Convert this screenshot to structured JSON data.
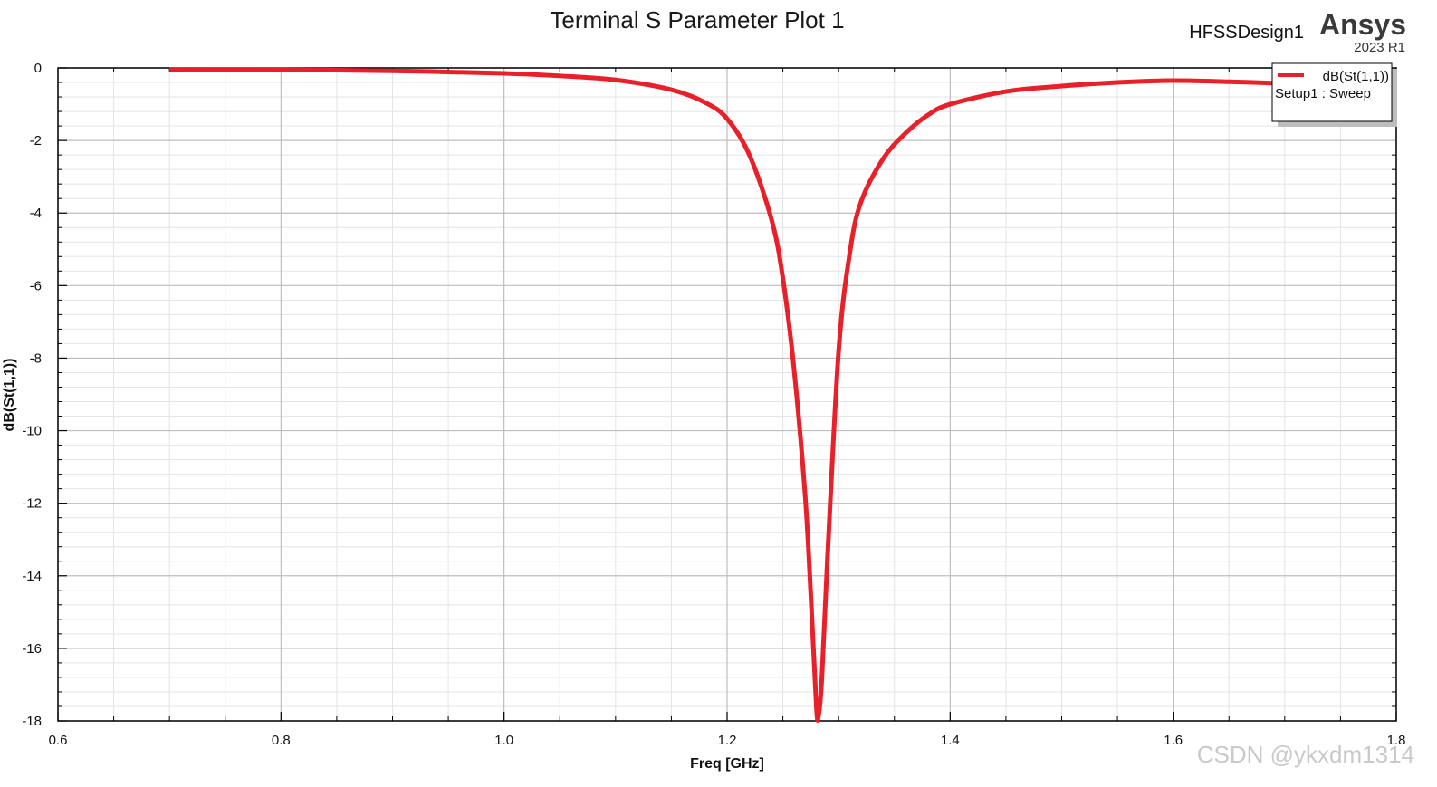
{
  "header": {
    "design_name": "HFSSDesign1",
    "brand": "Ansys",
    "version": "2023 R1"
  },
  "watermark": "CSDN @ykxdm1314",
  "colors": {
    "trace": "#e8202a",
    "grid_major": "#bdbdbd",
    "grid_minor": "#e4e4e4",
    "axis": "#000000"
  },
  "chart_data": {
    "type": "line",
    "title": "Terminal S Parameter Plot 1",
    "xlabel": "Freq [GHz]",
    "ylabel": "dB(St(1,1))",
    "xlim": [
      0.6,
      1.8
    ],
    "ylim": [
      -18,
      0
    ],
    "x_ticks": [
      0.6,
      0.8,
      1.0,
      1.2,
      1.4,
      1.6,
      1.8
    ],
    "x_tick_labels": [
      "0.6",
      "0.8",
      "1.0",
      "1.2",
      "1.4",
      "1.6",
      "1.8"
    ],
    "y_ticks": [
      0,
      -2,
      -4,
      -6,
      -8,
      -10,
      -12,
      -14,
      -16,
      -18
    ],
    "y_tick_labels": [
      "0",
      "-2",
      "-4",
      "-6",
      "-8",
      "-10",
      "-12",
      "-14",
      "-16",
      "-18"
    ],
    "grid": true,
    "legend": {
      "position": "top-right",
      "entries": [
        {
          "name": "dB(St(1,1))",
          "subtitle": "Setup1 : Sweep",
          "color": "#e8202a"
        }
      ]
    },
    "series": [
      {
        "name": "dB(St(1,1))",
        "x": [
          0.7,
          0.8,
          0.9,
          1.0,
          1.05,
          1.1,
          1.15,
          1.18,
          1.2,
          1.22,
          1.24,
          1.25,
          1.26,
          1.27,
          1.275,
          1.28,
          1.282,
          1.285,
          1.29,
          1.3,
          1.31,
          1.32,
          1.34,
          1.36,
          1.38,
          1.4,
          1.45,
          1.5,
          1.55,
          1.6,
          1.65,
          1.7
        ],
        "y": [
          -0.05,
          -0.05,
          -0.08,
          -0.15,
          -0.22,
          -0.33,
          -0.6,
          -0.95,
          -1.4,
          -2.4,
          -4.2,
          -5.8,
          -8.3,
          -11.8,
          -14.5,
          -17.6,
          -17.85,
          -16.8,
          -13.5,
          -7.8,
          -5.1,
          -3.7,
          -2.5,
          -1.8,
          -1.3,
          -1.0,
          -0.65,
          -0.5,
          -0.4,
          -0.35,
          -0.38,
          -0.43
        ]
      }
    ]
  }
}
